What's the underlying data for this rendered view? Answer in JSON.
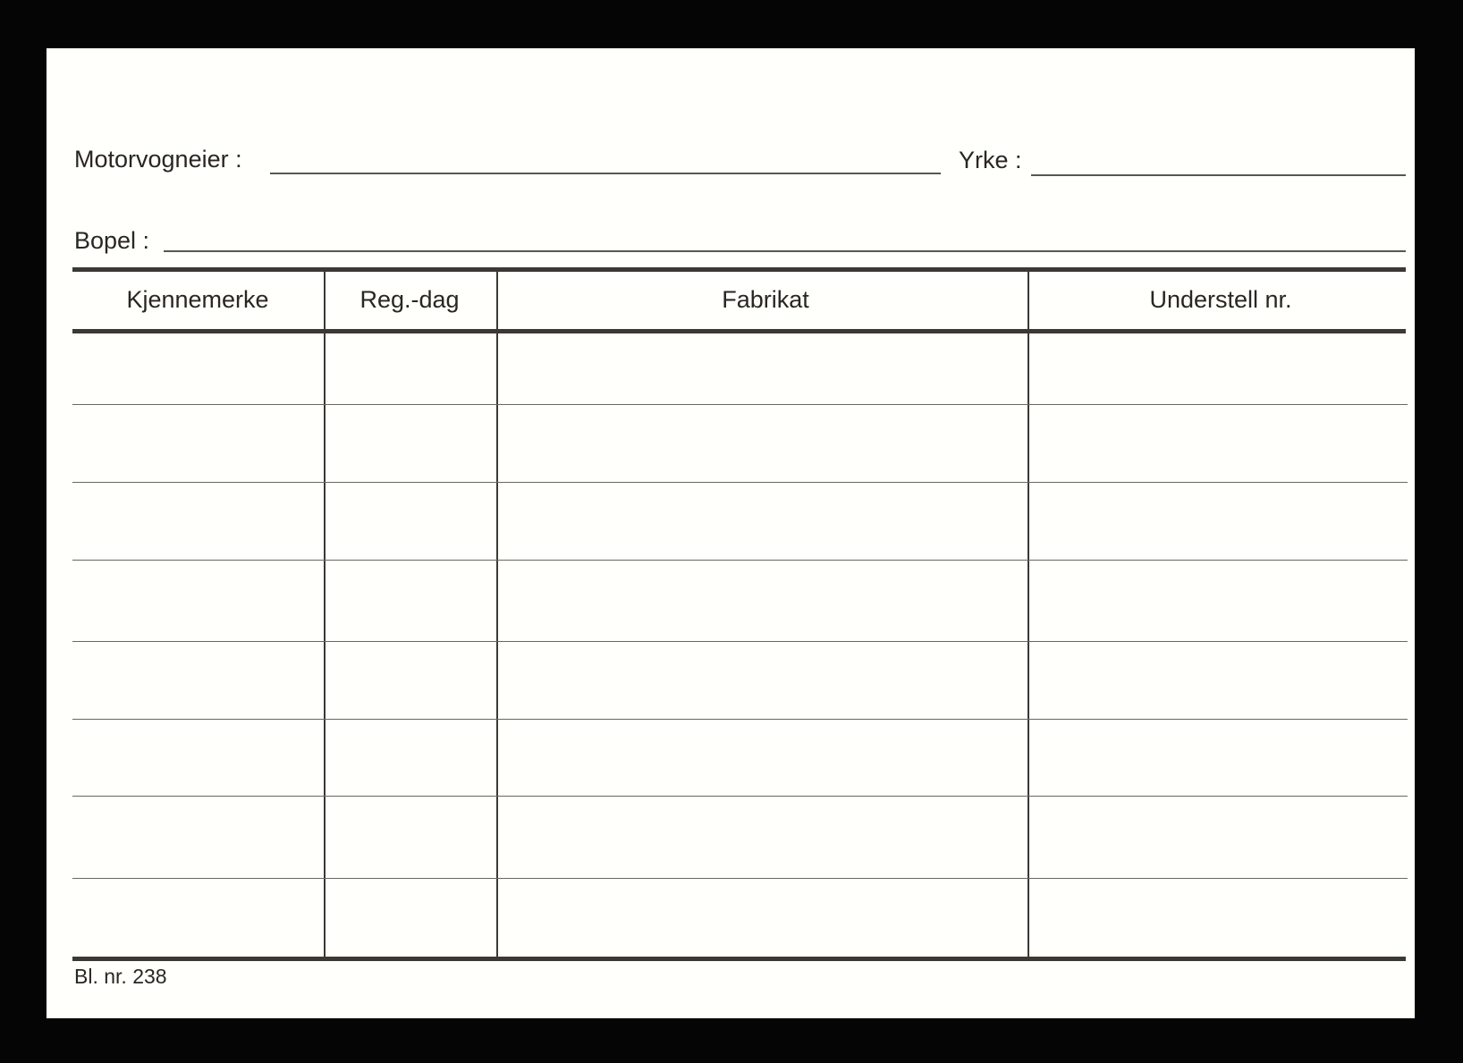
{
  "form": {
    "owner_label": "Motorvogneier :",
    "occupation_label": "Yrke :",
    "address_label": "Bopel :",
    "columns": [
      "Kjennemerke",
      "Reg.-dag",
      "Fabrikat",
      "Understell nr."
    ],
    "empty_rows": 8,
    "form_number": "Bl. nr. 238"
  }
}
